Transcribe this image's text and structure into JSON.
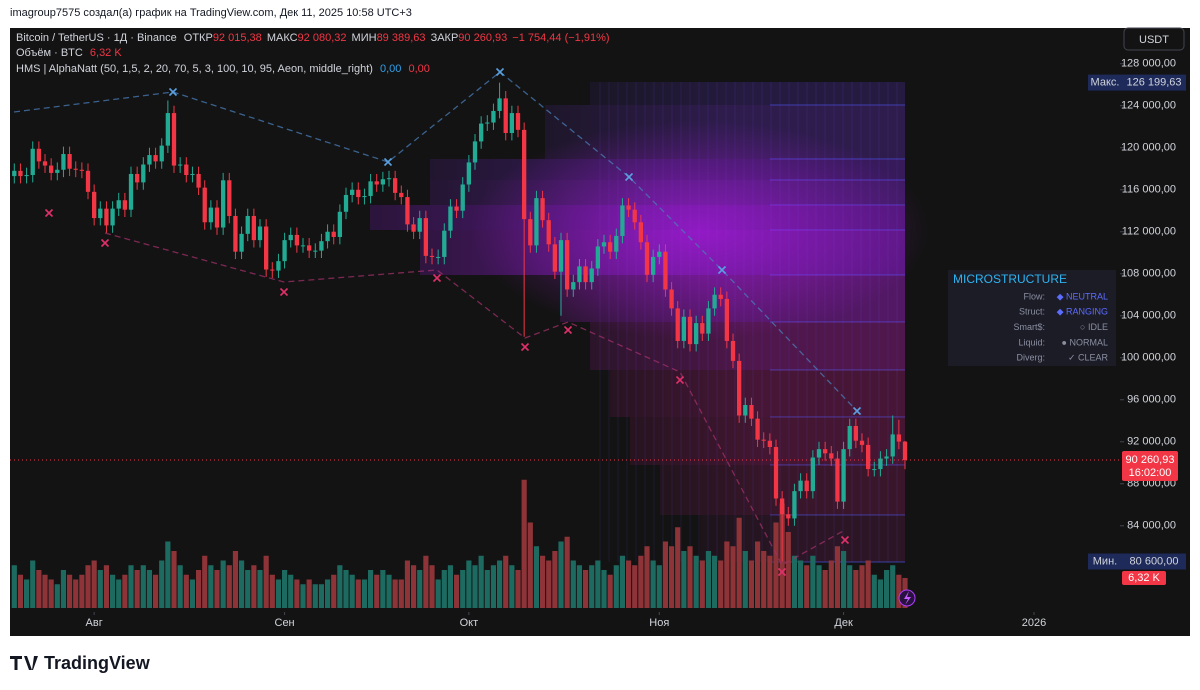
{
  "header": {
    "caption": "imagroup7575 создал(а) график на TradingView.com, Дек 11, 2025 10:58 UTC+3"
  },
  "chart_data": {
    "type": "candlestick",
    "symbol": "Bitcoin / TetherUS · 1Д · Binance",
    "legend": [
      {
        "key": "ОТКР",
        "value": "92 015,38"
      },
      {
        "key": "МАКС",
        "value": "92 080,32"
      },
      {
        "key": "МИН",
        "value": "89 389,63"
      },
      {
        "key": "ЗАКР",
        "value": "90 260,93"
      }
    ],
    "change": "−1 754,44 (−1,91%)",
    "volume_legend": {
      "name": "Объём · BTC",
      "value": "6,32 K"
    },
    "open": [
      117300,
      117800,
      117300,
      117400,
      119900,
      118700,
      118300,
      117600,
      117900,
      119400,
      118000,
      117900,
      117800,
      115800,
      113300,
      114200,
      112600,
      114200,
      115000,
      114100,
      117500,
      116700,
      118400,
      119300,
      118700,
      120200,
      123300,
      118300,
      118400,
      117400,
      117500,
      116200,
      112900,
      114300,
      112400,
      116900,
      113500,
      110100,
      111800,
      113500,
      111200,
      112500,
      108400,
      108300,
      109200,
      111200,
      111700,
      110700,
      110700,
      110200,
      110200,
      111100,
      112000,
      111500,
      113900,
      115500,
      116000,
      115300,
      115400,
      116800,
      116500,
      117000,
      117100,
      115700,
      115300,
      112700,
      112000,
      113300,
      109700,
      109600,
      109600,
      112100,
      114400,
      114000,
      116500,
      118600,
      120600,
      122300,
      122400,
      123500,
      124700,
      121400,
      123300,
      121700,
      113200,
      110700,
      115200,
      113100,
      110800,
      108200,
      111200,
      106500,
      107200,
      108700,
      107200,
      108500,
      110600,
      111000,
      110100,
      111600,
      114500,
      114100,
      112900,
      111000,
      107900,
      109600,
      110100,
      106500,
      104700,
      101600,
      103900,
      101300,
      103300,
      102300,
      104700,
      106000,
      105600,
      101600,
      99700,
      94500,
      95500,
      94200,
      92200,
      92100,
      91500,
      86600,
      85100,
      84700,
      87300,
      88300,
      87300,
      90500,
      91300,
      90900,
      90400,
      86300,
      91300,
      93500,
      92100,
      91700,
      89400,
      89400,
      90400,
      90600,
      92700,
      92015.38
    ],
    "high": [
      118500,
      118500,
      118100,
      120600,
      120600,
      119400,
      119000,
      118600,
      120100,
      120100,
      118700,
      118600,
      118500,
      116500,
      114900,
      114900,
      114900,
      115700,
      115700,
      118200,
      118200,
      119100,
      120000,
      120000,
      120900,
      124500,
      124000,
      119100,
      119100,
      118200,
      118200,
      116900,
      115000,
      115000,
      117600,
      117600,
      114200,
      112500,
      114200,
      114200,
      113200,
      113200,
      109100,
      109900,
      111900,
      112400,
      112400,
      111400,
      111400,
      110900,
      111800,
      112700,
      112700,
      114600,
      116200,
      116700,
      116700,
      116100,
      117500,
      117500,
      117700,
      117800,
      117800,
      116400,
      116000,
      113400,
      114000,
      114000,
      110400,
      110300,
      112800,
      115100,
      115100,
      117200,
      119300,
      121300,
      123000,
      123100,
      124200,
      126199.63,
      125400,
      124000,
      124000,
      122400,
      113900,
      115900,
      115900,
      113800,
      111500,
      111900,
      111900,
      107900,
      109400,
      109400,
      109200,
      111300,
      111700,
      111700,
      112300,
      115200,
      115200,
      114800,
      113600,
      111700,
      110300,
      110800,
      110800,
      107200,
      105400,
      104600,
      104600,
      104000,
      104000,
      105400,
      106700,
      106700,
      106300,
      102300,
      100400,
      96200,
      96200,
      94900,
      92900,
      92800,
      92200,
      87300,
      85800,
      88000,
      89000,
      89000,
      91200,
      92000,
      92000,
      91600,
      91100,
      92000,
      94200,
      94200,
      92800,
      92400,
      90100,
      91100,
      91300,
      94500,
      94100,
      92080.32
    ],
    "low": [
      116600,
      116600,
      116600,
      116700,
      118000,
      117600,
      116900,
      116900,
      117200,
      117300,
      117200,
      117100,
      115100,
      112600,
      112600,
      111900,
      111900,
      113500,
      113400,
      113400,
      116000,
      116000,
      117700,
      118000,
      118000,
      119500,
      117600,
      117600,
      116700,
      116700,
      115500,
      112200,
      112200,
      111700,
      111700,
      112800,
      109400,
      109400,
      111100,
      110500,
      110500,
      107700,
      107600,
      107600,
      108500,
      110500,
      110000,
      110000,
      109500,
      109500,
      109500,
      110400,
      110800,
      110800,
      113200,
      114800,
      114600,
      114600,
      114700,
      115800,
      115800,
      116300,
      115000,
      114600,
      112000,
      111300,
      111300,
      109000,
      108900,
      108900,
      108900,
      111400,
      113300,
      113300,
      115800,
      117900,
      119900,
      121600,
      121700,
      122800,
      120700,
      120700,
      121000,
      102000,
      110000,
      110000,
      112400,
      110100,
      107500,
      104000,
      105800,
      105800,
      106500,
      106500,
      106500,
      107800,
      109900,
      109400,
      109400,
      110900,
      113400,
      112200,
      110300,
      107200,
      107200,
      108900,
      105800,
      104000,
      100900,
      100900,
      100600,
      100600,
      101600,
      101600,
      104000,
      104900,
      100900,
      99000,
      93800,
      93800,
      93500,
      91500,
      91400,
      90800,
      85900,
      80600,
      84000,
      84000,
      86600,
      86600,
      86600,
      89800,
      90200,
      89700,
      85600,
      85600,
      90600,
      91400,
      91000,
      88700,
      88700,
      88700,
      89700,
      89900,
      91300,
      89389.63
    ],
    "close": [
      117800,
      117300,
      117400,
      119900,
      118700,
      118300,
      117600,
      117900,
      119400,
      118000,
      117900,
      117800,
      115800,
      113300,
      114200,
      112600,
      114200,
      115000,
      114100,
      117500,
      116700,
      118400,
      119300,
      118700,
      120200,
      123300,
      118300,
      118400,
      117400,
      117500,
      116200,
      112900,
      114300,
      112400,
      116900,
      113500,
      110100,
      111800,
      113500,
      111200,
      112500,
      108400,
      108300,
      109200,
      111200,
      111700,
      110700,
      110700,
      110200,
      110200,
      111100,
      112000,
      111500,
      113900,
      115500,
      116000,
      115300,
      115400,
      116800,
      116500,
      117000,
      117100,
      115700,
      115300,
      112700,
      112000,
      113300,
      109700,
      109600,
      109600,
      112100,
      114400,
      114000,
      116500,
      118600,
      120600,
      122300,
      122400,
      123500,
      124700,
      121400,
      123300,
      121700,
      113200,
      110700,
      115200,
      113100,
      110800,
      108200,
      111200,
      106500,
      107200,
      108700,
      107200,
      108500,
      110600,
      111000,
      110100,
      111600,
      114500,
      114100,
      112900,
      111000,
      107900,
      109600,
      110100,
      106500,
      104700,
      101600,
      103900,
      101300,
      103300,
      102300,
      104700,
      106000,
      105600,
      101600,
      99700,
      94500,
      95500,
      94200,
      92200,
      92100,
      91500,
      86600,
      85100,
      84700,
      87300,
      88300,
      87300,
      90500,
      91300,
      90900,
      90400,
      86300,
      91300,
      93500,
      92100,
      91700,
      89400,
      89400,
      90400,
      90600,
      92700,
      92015.38,
      90260.93
    ],
    "volume": [
      9,
      7,
      6,
      10,
      8,
      7,
      6,
      5,
      8,
      7,
      6,
      7,
      9,
      10,
      8,
      9,
      7,
      6,
      7,
      9,
      8,
      9,
      8,
      7,
      10,
      14,
      12,
      9,
      7,
      6,
      8,
      11,
      9,
      8,
      10,
      9,
      12,
      10,
      8,
      9,
      8,
      11,
      7,
      6,
      8,
      7,
      6,
      5,
      6,
      5,
      5,
      6,
      7,
      9,
      8,
      7,
      6,
      6,
      8,
      7,
      8,
      7,
      6,
      6,
      10,
      9,
      8,
      11,
      9,
      6,
      8,
      9,
      7,
      8,
      10,
      9,
      11,
      8,
      9,
      10,
      11,
      9,
      8,
      27,
      18,
      13,
      11,
      10,
      12,
      14,
      15,
      10,
      9,
      8,
      9,
      10,
      8,
      7,
      9,
      11,
      10,
      9,
      11,
      13,
      10,
      9,
      14,
      13,
      17,
      12,
      13,
      11,
      10,
      12,
      11,
      10,
      14,
      13,
      19,
      12,
      10,
      14,
      12,
      11,
      18,
      22,
      16,
      11,
      10,
      9,
      11,
      9,
      8,
      10,
      13,
      12,
      9,
      8,
      9,
      10,
      7,
      6,
      8,
      9,
      7,
      6.32
    ],
    "colors": {
      "up": "#22ab94",
      "down": "#f23645",
      "volume_up": "#1d6b60",
      "volume_down": "#8e3438"
    },
    "currency": "USDT",
    "xlim": [
      -0.7,
      180
    ],
    "xticks": [
      {
        "value": 13,
        "label": "Авг"
      },
      {
        "value": 44,
        "label": "Сен"
      },
      {
        "value": 74,
        "label": "Окт"
      },
      {
        "value": 105,
        "label": "Ноя"
      },
      {
        "value": 135,
        "label": "Дек"
      },
      {
        "value": 166,
        "label": "2026"
      }
    ],
    "ylim": [
      73600,
      131400
    ],
    "yticks": [
      {
        "value": 84000,
        "label": "84 000,00"
      },
      {
        "value": 88000,
        "label": "88 000,00"
      },
      {
        "value": 92000,
        "label": "92 000,00"
      },
      {
        "value": 96000,
        "label": "96 000,00"
      },
      {
        "value": 100000,
        "label": "100 000,00"
      },
      {
        "value": 104000,
        "label": "104 000,00"
      },
      {
        "value": 108000,
        "label": "108 000,00"
      },
      {
        "value": 112000,
        "label": "112 000,00"
      },
      {
        "value": 116000,
        "label": "116 000,00"
      },
      {
        "value": 120000,
        "label": "120 000,00"
      },
      {
        "value": 124000,
        "label": "124 000,00"
      },
      {
        "value": 128000,
        "label": "128 000,00"
      }
    ],
    "price_tags": {
      "max": {
        "name": "Макс.",
        "value": 126199.63,
        "label": "126 199,63"
      },
      "min": {
        "name": "Мин.",
        "value": 80600,
        "label": "80 600,00"
      },
      "last": {
        "value": 90260.93,
        "label": "90 260,93",
        "countdown": "16:02:00"
      }
    },
    "volume_tag": {
      "value": 6.32,
      "label": "6,32 K"
    }
  },
  "indicator": {
    "name": "HMS | AlphaNatt (50, 1,5, 2, 20, 70, 5, 3, 100, 10, 95, Aeon, middle_right)",
    "values": [
      "0,00",
      "0,00"
    ]
  },
  "panel": {
    "title": "MICROSTRUCTURE",
    "rows": [
      {
        "label": "Flow:",
        "value": "◆ NEUTRAL"
      },
      {
        "label": "Struct:",
        "value": "◆ RANGING"
      },
      {
        "label": "Smart$:",
        "value": "○ IDLE"
      },
      {
        "label": "Liquid:",
        "value": "● NORMAL"
      },
      {
        "label": "Diverg:",
        "value": "✓ CLEAR"
      }
    ]
  },
  "footer": {
    "brand": "TradingView"
  }
}
